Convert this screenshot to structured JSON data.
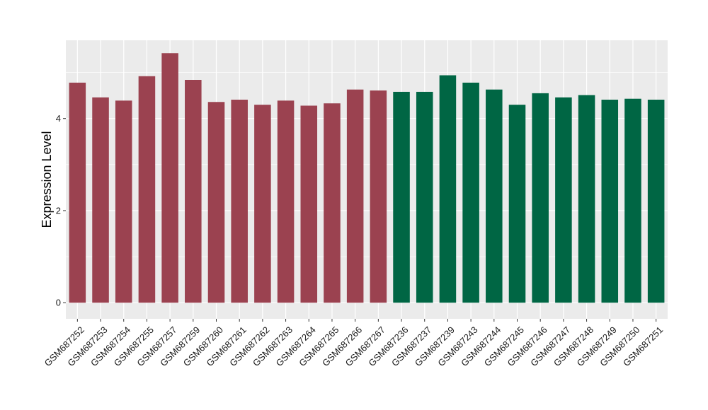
{
  "chart_data": {
    "type": "bar",
    "title": "",
    "xlabel": "",
    "ylabel": "Expression Level",
    "ylim": [
      -0.35,
      5.7
    ],
    "yticks": [
      0,
      2,
      4
    ],
    "grid": true,
    "legend": "none",
    "panel_background": "#ebebeb",
    "gridline_color": "#ffffff",
    "categories": [
      "GSM687252",
      "GSM687253",
      "GSM687254",
      "GSM687255",
      "GSM687257",
      "GSM687259",
      "GSM687260",
      "GSM687261",
      "GSM687262",
      "GSM687263",
      "GSM687264",
      "GSM687265",
      "GSM687266",
      "GSM687267",
      "GSM687236",
      "GSM687237",
      "GSM687239",
      "GSM687243",
      "GSM687244",
      "GSM687245",
      "GSM687246",
      "GSM687247",
      "GSM687248",
      "GSM687249",
      "GSM687250",
      "GSM687251"
    ],
    "values": [
      4.78,
      4.46,
      4.39,
      4.92,
      5.42,
      4.84,
      4.36,
      4.41,
      4.3,
      4.39,
      4.28,
      4.33,
      4.63,
      4.61,
      4.58,
      4.58,
      4.94,
      4.78,
      4.63,
      4.3,
      4.55,
      4.46,
      4.51,
      4.41,
      4.43,
      4.41
    ],
    "colors": [
      "#9b4250",
      "#9b4250",
      "#9b4250",
      "#9b4250",
      "#9b4250",
      "#9b4250",
      "#9b4250",
      "#9b4250",
      "#9b4250",
      "#9b4250",
      "#9b4250",
      "#9b4250",
      "#9b4250",
      "#9b4250",
      "#006644",
      "#006644",
      "#006644",
      "#006644",
      "#006644",
      "#006644",
      "#006644",
      "#006644",
      "#006644",
      "#006644",
      "#006644",
      "#006644"
    ]
  }
}
